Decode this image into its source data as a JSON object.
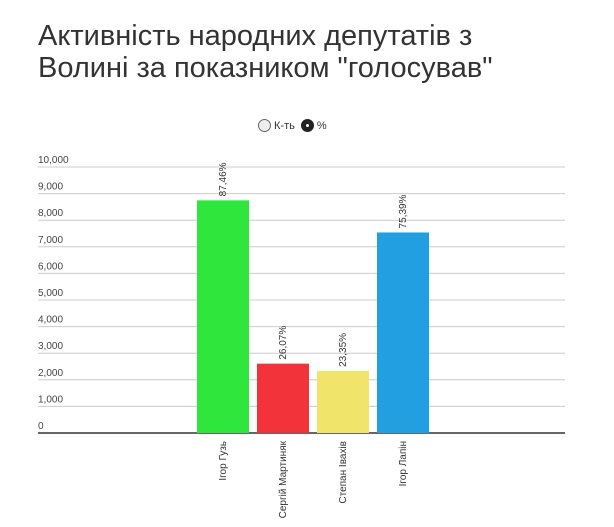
{
  "chart_data": {
    "type": "bar",
    "title": "Активність народних депутатів з Волині за показником \"голосував\"",
    "toggle": [
      {
        "label": "К-ть",
        "selected": false
      },
      {
        "label": "%",
        "selected": true
      }
    ],
    "categories": [
      "Ігор Гузь",
      "Сергій Мартиняк",
      "Степан Івахів",
      "Ігор Лапін"
    ],
    "values": [
      8746,
      2607,
      2335,
      7539
    ],
    "value_labels": [
      "87,46%",
      "26,07%",
      "23,35%",
      "75,39%"
    ],
    "colors": [
      "#2ee63c",
      "#f2333a",
      "#f0e46a",
      "#219fe0"
    ],
    "ylim": [
      0,
      10000
    ],
    "yticks": [
      0,
      {
        "value": 1000,
        "label": "1,000"
      },
      {
        "value": 2000,
        "label": "2,000"
      },
      {
        "value": 3000,
        "label": "3,000"
      },
      {
        "value": 4000,
        "label": "4,000"
      },
      {
        "value": 5000,
        "label": "5,000"
      },
      {
        "value": 6000,
        "label": "6,000"
      },
      {
        "value": 7000,
        "label": "7,000"
      },
      {
        "value": 8000,
        "label": "8,000"
      },
      {
        "value": 9000,
        "label": "9,000"
      },
      {
        "value": 10000,
        "label": "10,000"
      }
    ],
    "grid": true
  }
}
